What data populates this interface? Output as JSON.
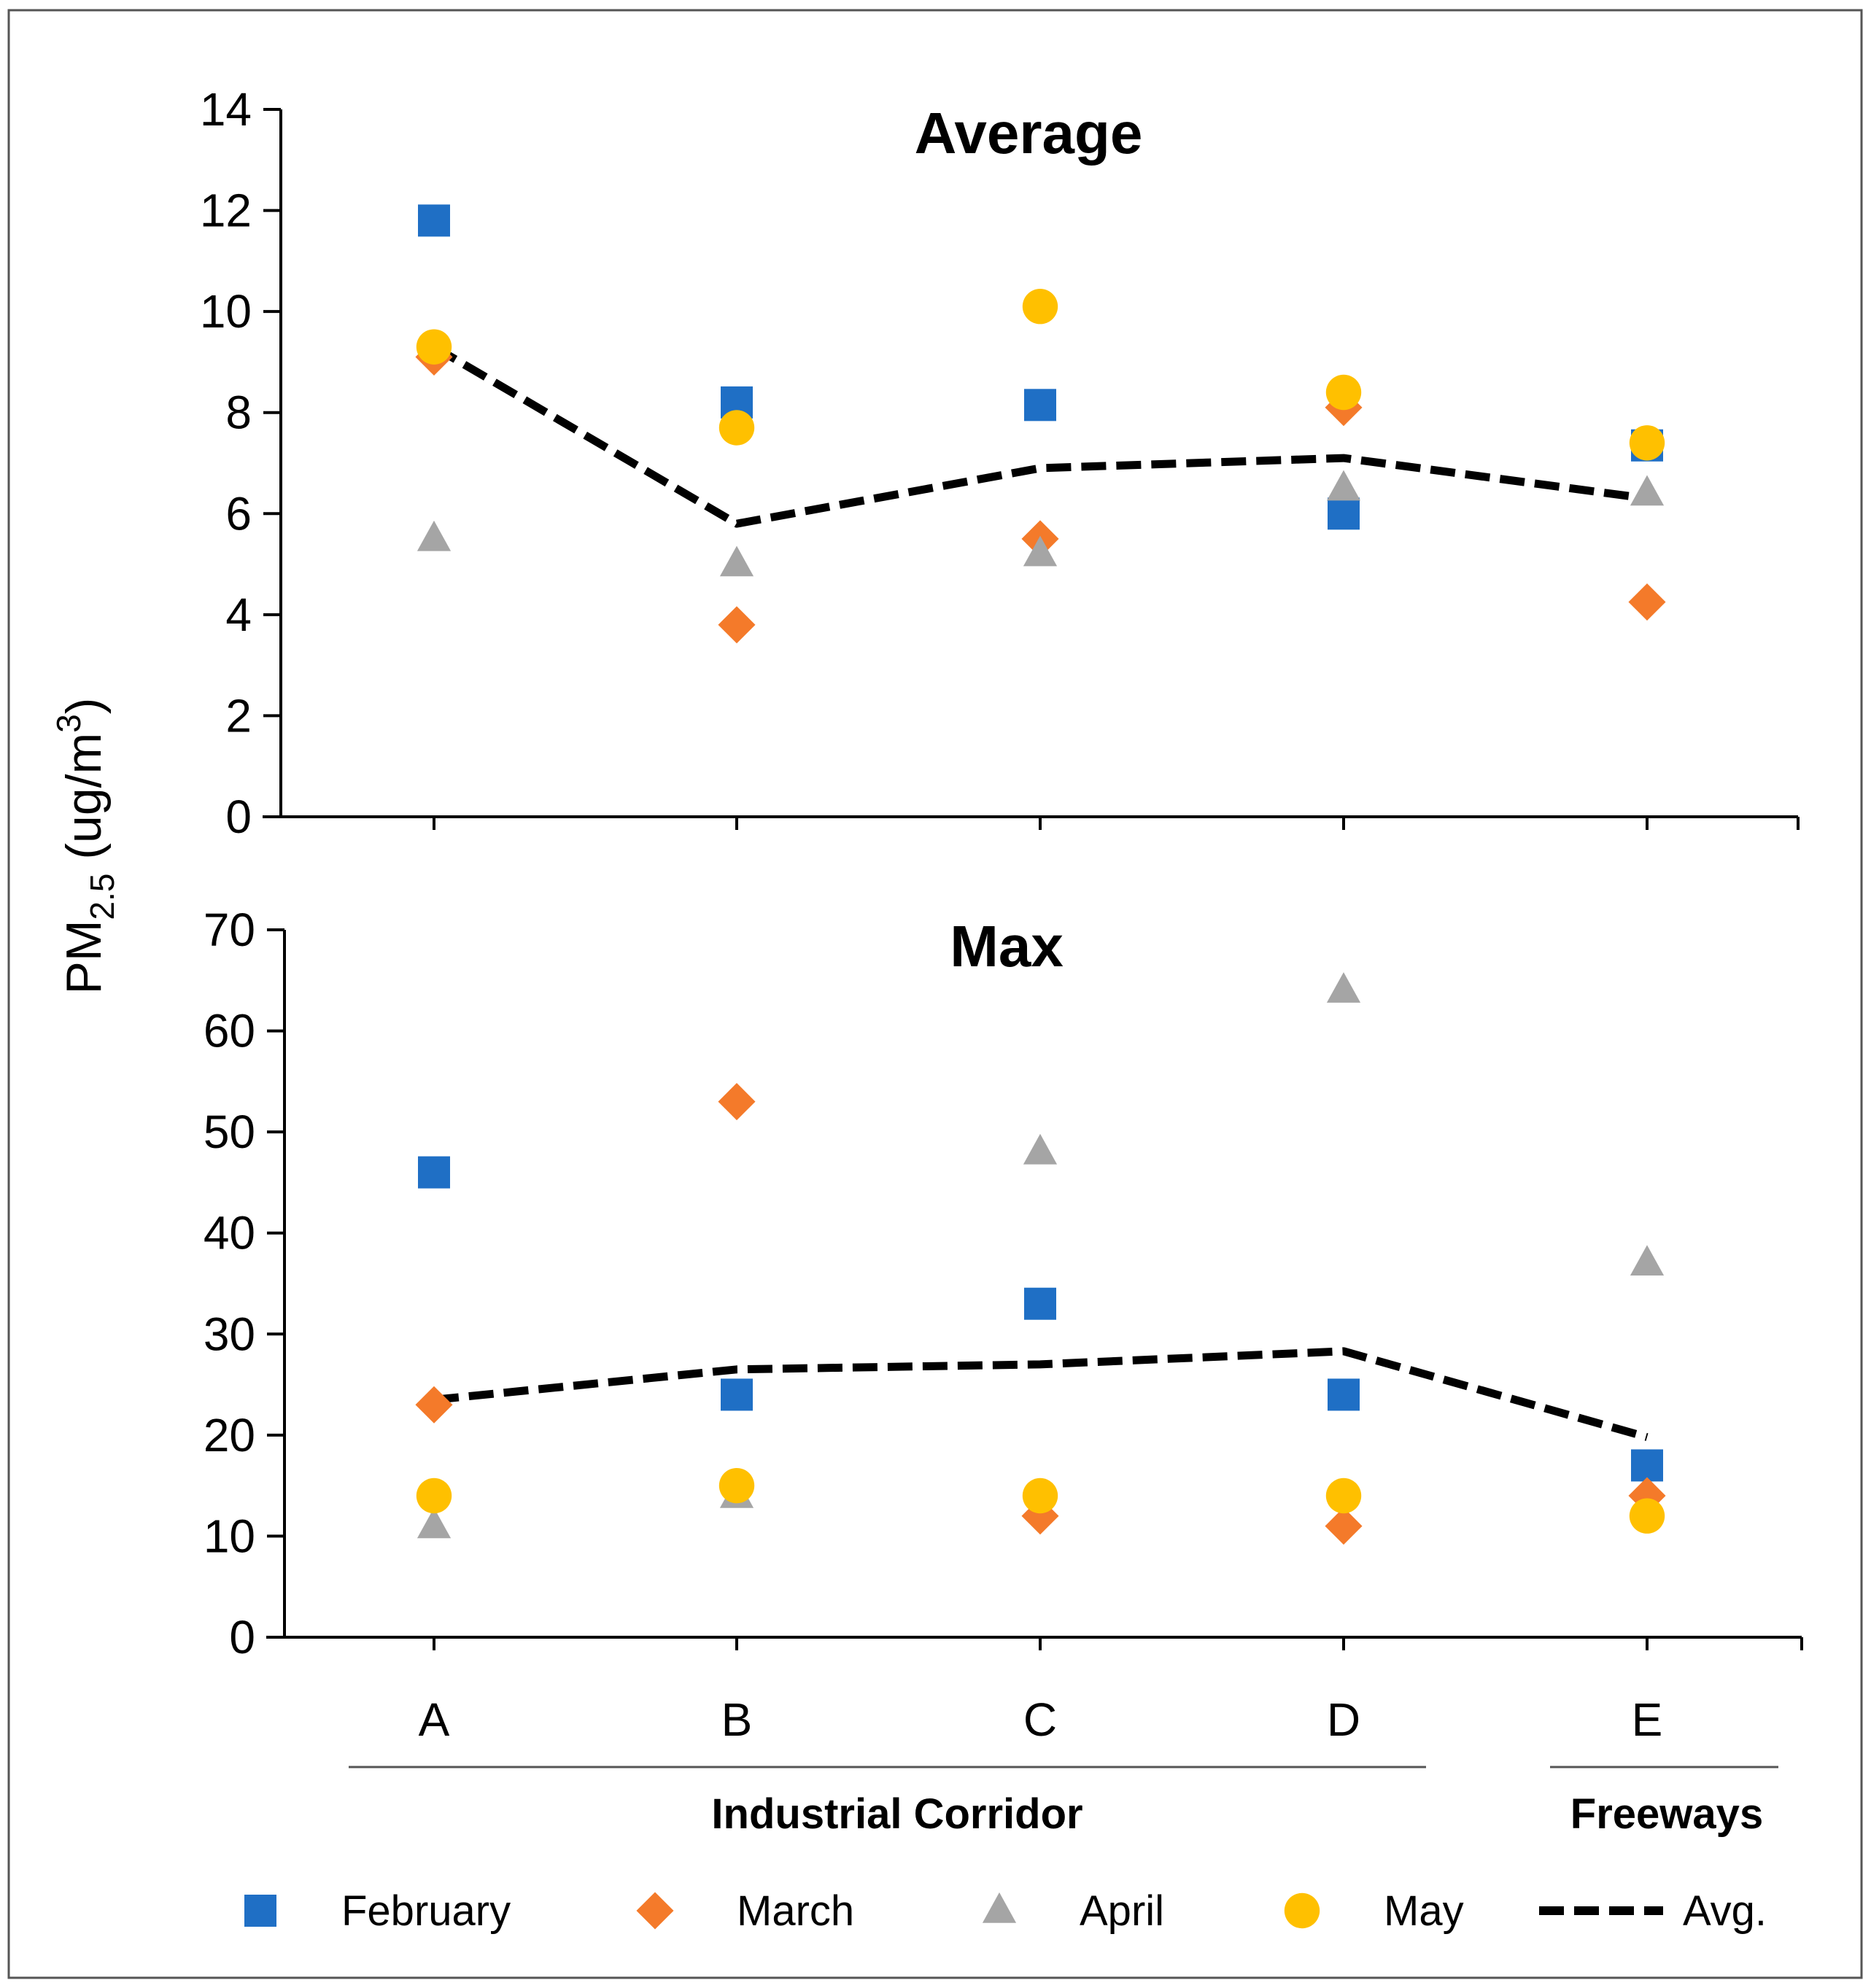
{
  "chart_data": {
    "type": "scatter",
    "ylabel_parts": {
      "prefix": "PM",
      "subscript": "2.5",
      "unit": " (ug/m",
      "superscript": "3",
      "close": ")"
    },
    "categories": [
      "A",
      "B",
      "C",
      "D",
      "E"
    ],
    "groups": [
      {
        "label": "Industrial Corridor",
        "categories": [
          "A",
          "B",
          "C",
          "D"
        ]
      },
      {
        "label": "Freeways",
        "categories": [
          "E"
        ]
      }
    ],
    "legend": [
      {
        "name": "February",
        "marker": "square",
        "color": "#1f6fc5"
      },
      {
        "name": "March",
        "marker": "diamond",
        "color": "#f47a2a"
      },
      {
        "name": "April",
        "marker": "triangle",
        "color": "#a5a5a5"
      },
      {
        "name": "May",
        "marker": "circle",
        "color": "#ffc000"
      },
      {
        "name": "Avg.",
        "marker": "dashed-line",
        "color": "#000000"
      }
    ],
    "panels": [
      {
        "title": "Average",
        "ylim": [
          0,
          14
        ],
        "yticks": [
          0,
          2,
          4,
          6,
          8,
          10,
          12,
          14
        ],
        "series": [
          {
            "name": "February",
            "values": [
              11.8,
              8.2,
              8.15,
              6.0,
              7.35
            ]
          },
          {
            "name": "March",
            "values": [
              9.1,
              3.8,
              5.5,
              8.1,
              4.25
            ]
          },
          {
            "name": "April",
            "values": [
              5.5,
              5.0,
              5.2,
              6.5,
              6.4
            ]
          },
          {
            "name": "May",
            "values": [
              9.3,
              7.7,
              10.1,
              8.4,
              7.4
            ]
          },
          {
            "name": "Avg.",
            "values": [
              9.3,
              5.8,
              6.9,
              7.1,
              6.3
            ]
          }
        ]
      },
      {
        "title": "Max",
        "ylim": [
          0,
          70
        ],
        "yticks": [
          0,
          10,
          20,
          30,
          40,
          50,
          60,
          70
        ],
        "series": [
          {
            "name": "February",
            "values": [
              46,
              24,
              33,
              24,
              17
            ]
          },
          {
            "name": "March",
            "values": [
              23,
              53,
              12,
              11,
              14
            ]
          },
          {
            "name": "April",
            "values": [
              11,
              14,
              48,
              64,
              37
            ]
          },
          {
            "name": "May",
            "values": [
              14,
              15,
              14,
              14,
              12
            ]
          },
          {
            "name": "Avg.",
            "values": [
              23.5,
              26.5,
              27,
              28.3,
              19.8
            ]
          }
        ]
      }
    ]
  }
}
